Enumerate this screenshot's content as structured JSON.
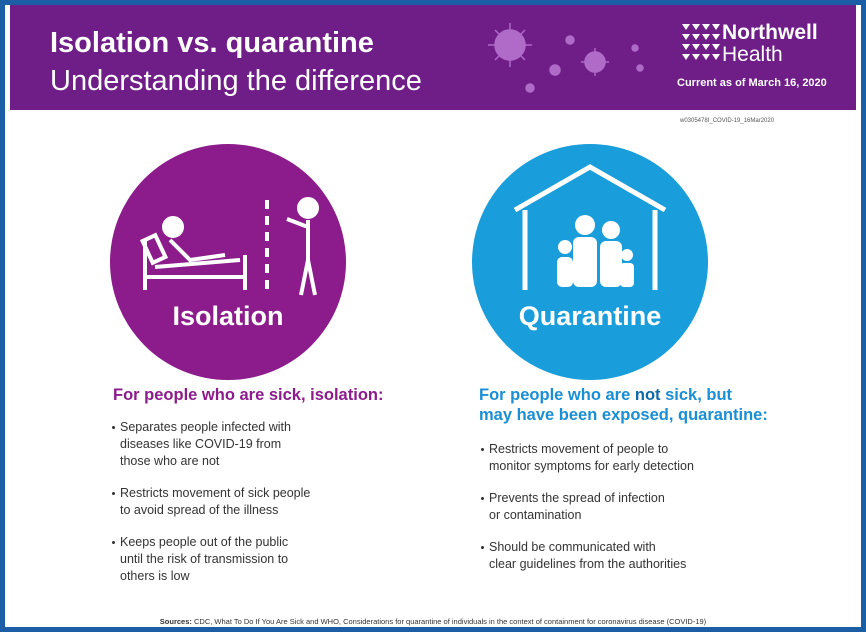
{
  "header": {
    "title": "Isolation vs. quarantine",
    "subtitle": "Understanding the difference",
    "brand": [
      "Northwell",
      "Health"
    ],
    "date": "Current as of March 16, 2020",
    "code": "w0305478I_COVID-19_16Mar2020"
  },
  "isolation": {
    "label": "Isolation",
    "heading": "For people who are sick, isolation:",
    "bullets": [
      [
        "Separates people infected with",
        "diseases like COVID-19 from",
        "those who are not"
      ],
      [
        "Restricts movement of sick people",
        "to avoid spread of the illness"
      ],
      [
        "Keeps people out of the public",
        "until the risk of transmission to",
        "others is low"
      ]
    ]
  },
  "quarantine": {
    "label": "Quarantine",
    "heading": {
      "line1": [
        "For people who are ",
        "not",
        " sick, but"
      ],
      "line2": "may have been exposed, quarantine:"
    },
    "bullets": [
      [
        "Restricts movement of people to",
        "monitor symptoms for early detection"
      ],
      [
        "Prevents the spread of infection",
        "or contamination"
      ],
      [
        "Should be communicated with",
        "clear guidelines from the authorities"
      ]
    ]
  },
  "sources": {
    "label": "Sources:",
    "text": " CDC, What To Do If You Are Sick and WHO, Considerations for quarantine of individuals in the context of containment for coronavirus disease (COVID-19)"
  }
}
